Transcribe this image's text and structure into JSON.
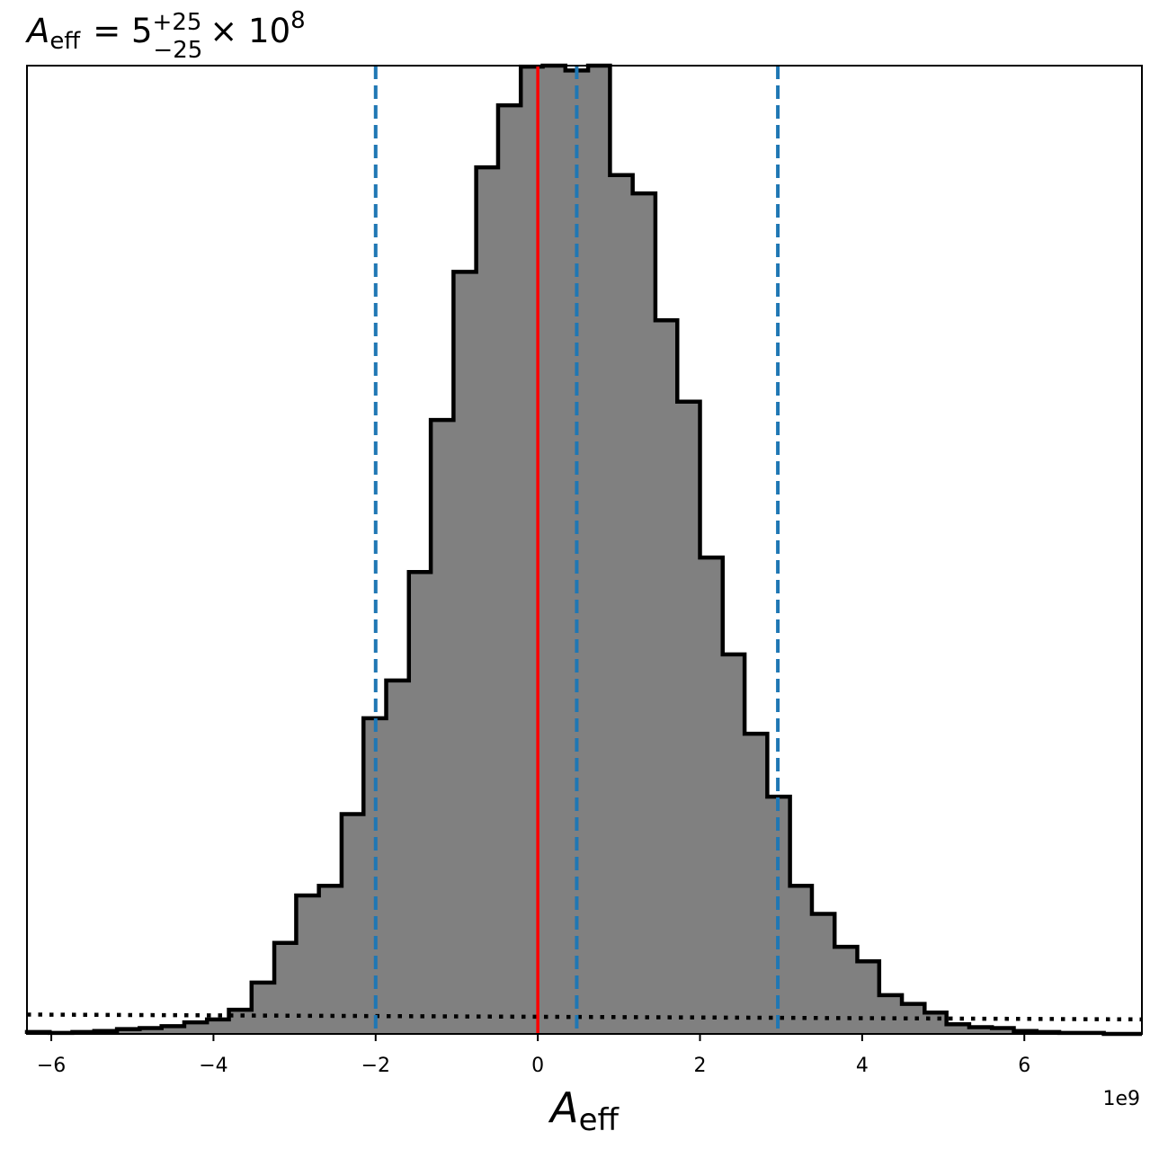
{
  "chart_data": {
    "type": "histogram",
    "title": {
      "symbol": "A",
      "symbol_sub": "eff",
      "equals": "= 5",
      "sup": "+25",
      "sub": "−25",
      "times": "× 10",
      "exp": "8"
    },
    "xlabel": {
      "symbol": "A",
      "sub": "eff"
    },
    "x_offset_label": "1e9",
    "xlim": [
      -6.3,
      7.45
    ],
    "ylim": [
      0,
      1.0
    ],
    "x_scale": 1000000000,
    "x_ticks": [
      {
        "value": -6,
        "label": "−6"
      },
      {
        "value": -4,
        "label": "−4"
      },
      {
        "value": -2,
        "label": "−2"
      },
      {
        "value": 0,
        "label": "0"
      },
      {
        "value": 2,
        "label": "2"
      },
      {
        "value": 4,
        "label": "4"
      },
      {
        "value": 6,
        "label": "6"
      }
    ],
    "y_ticks_shown": false,
    "bin_edges": [
      -6.3,
      -6.02,
      -5.74,
      -5.47,
      -5.19,
      -4.91,
      -4.64,
      -4.36,
      -4.08,
      -3.81,
      -3.53,
      -3.25,
      -2.98,
      -2.7,
      -2.42,
      -2.15,
      -1.87,
      -1.59,
      -1.32,
      -1.04,
      -0.76,
      -0.49,
      -0.21,
      0.06,
      0.34,
      0.62,
      0.89,
      1.17,
      1.45,
      1.72,
      2.0,
      2.28,
      2.55,
      2.83,
      3.11,
      3.38,
      3.66,
      3.94,
      4.21,
      4.49,
      4.77,
      5.04,
      5.32,
      5.6,
      5.87,
      6.15,
      6.43,
      6.7,
      6.98,
      7.26,
      7.45
    ],
    "counts": [
      0.002,
      0.001,
      0.002,
      0.003,
      0.005,
      0.006,
      0.008,
      0.012,
      0.015,
      0.025,
      0.053,
      0.094,
      0.143,
      0.153,
      0.227,
      0.326,
      0.365,
      0.477,
      0.634,
      0.787,
      0.895,
      0.959,
      0.999,
      1.0,
      0.995,
      1.015,
      0.887,
      0.868,
      0.737,
      0.653,
      0.492,
      0.392,
      0.31,
      0.245,
      0.153,
      0.124,
      0.09,
      0.075,
      0.04,
      0.031,
      0.022,
      0.01,
      0.007,
      0.006,
      0.003,
      0.002,
      0.001,
      0.001,
      0.0,
      0.0
    ],
    "prior_line": {
      "style": "dotted",
      "color": "#000000",
      "y_start": 0.02,
      "y_end": 0.015
    },
    "true_value_line": {
      "x": 0.0,
      "color": "#ff0000",
      "style": "solid"
    },
    "quantile_lines": {
      "x": [
        -2.0,
        0.48,
        2.96
      ],
      "color": "#1f77b4",
      "style": "dashed"
    },
    "fill_color": "#808080",
    "edge_color": "#000000",
    "grid": false,
    "legend": false
  }
}
